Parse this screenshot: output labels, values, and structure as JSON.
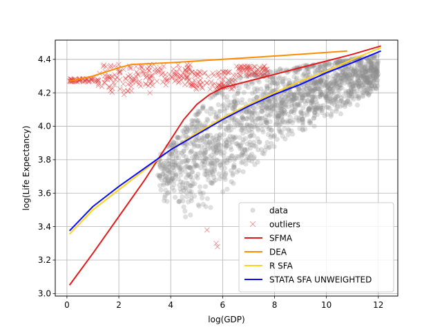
{
  "chart_data": {
    "type": "scatter",
    "title": "",
    "xlabel": "log(GDP)",
    "ylabel": "log(Life Expectancy)",
    "xlim": [
      -0.45,
      12.75
    ],
    "ylim": [
      2.985,
      4.515
    ],
    "xticks": [
      0,
      2,
      4,
      6,
      8,
      10,
      12
    ],
    "yticks": [
      3.0,
      3.2,
      3.4,
      3.6,
      3.8,
      4.0,
      4.2,
      4.4
    ],
    "xtick_labels": [
      "0",
      "2",
      "4",
      "6",
      "8",
      "10",
      "12"
    ],
    "ytick_labels": [
      "3.0",
      "3.2",
      "3.4",
      "3.6",
      "3.8",
      "4.0",
      "4.2",
      "4.4"
    ],
    "grid": true,
    "legend_position": "lower-right",
    "legend": [
      {
        "label": "data",
        "kind": "dot",
        "color": "#a0a0a0"
      },
      {
        "label": "outliers",
        "kind": "cross",
        "color": "#e88a8a"
      },
      {
        "label": "SFMA",
        "kind": "line",
        "color": "#e31a1c"
      },
      {
        "label": "DEA",
        "kind": "line",
        "color": "#ff8c00"
      },
      {
        "label": "R SFA",
        "kind": "line",
        "color": "#ffd21f"
      },
      {
        "label": "STATA SFA UNWEIGHTED",
        "kind": "line",
        "color": "#0a0aff"
      }
    ],
    "data_band": {
      "x_range": [
        3.5,
        12.0
      ],
      "upper": [
        [
          3.5,
          3.82
        ],
        [
          4.5,
          3.98
        ],
        [
          5.5,
          4.18
        ],
        [
          6.5,
          4.3
        ],
        [
          8,
          4.34
        ],
        [
          10,
          4.38
        ],
        [
          12,
          4.43
        ]
      ],
      "lower": [
        [
          3.5,
          3.58
        ],
        [
          4.5,
          3.4
        ],
        [
          5.5,
          3.5
        ],
        [
          6.5,
          3.65
        ],
        [
          8,
          3.85
        ],
        [
          10,
          4.0
        ],
        [
          12,
          4.2
        ]
      ],
      "density_center": [
        [
          3.5,
          3.7
        ],
        [
          5,
          3.82
        ],
        [
          7,
          4.05
        ],
        [
          9,
          4.2
        ],
        [
          12,
          4.33
        ]
      ]
    },
    "outlier_clusters": [
      {
        "x_range": [
          0.1,
          1.2
        ],
        "y_range": [
          4.265,
          4.285
        ]
      },
      {
        "x_range": [
          1.2,
          2.6
        ],
        "y_range": [
          4.2,
          4.37
        ]
      },
      {
        "x_range": [
          2.6,
          4.8
        ],
        "y_range": [
          4.24,
          4.37
        ]
      },
      {
        "x_range": [
          4.8,
          6.5
        ],
        "y_range": [
          4.22,
          4.33
        ]
      },
      {
        "x_range": [
          6.5,
          7.8
        ],
        "y_range": [
          4.3,
          4.36
        ]
      }
    ],
    "outlier_singles": [
      [
        5.8,
        3.28
      ],
      [
        5.75,
        3.3
      ],
      [
        5.4,
        3.38
      ],
      [
        3.2,
        4.2
      ],
      [
        2.2,
        4.19
      ]
    ],
    "series": [
      {
        "name": "SFMA",
        "color": "#e31a1c",
        "x": [
          0.1,
          1,
          2,
          3,
          3.5,
          4,
          4.5,
          5,
          5.5,
          6,
          7,
          8,
          9,
          10,
          11,
          12.1
        ],
        "y": [
          3.05,
          3.24,
          3.46,
          3.68,
          3.8,
          3.92,
          4.04,
          4.13,
          4.19,
          4.23,
          4.27,
          4.31,
          4.35,
          4.39,
          4.43,
          4.48
        ]
      },
      {
        "name": "DEA",
        "color": "#ff8c00",
        "x": [
          0.1,
          1,
          2,
          2.5,
          4,
          6,
          8,
          10.8
        ],
        "y": [
          4.27,
          4.3,
          4.35,
          4.37,
          4.38,
          4.4,
          4.42,
          4.45
        ]
      },
      {
        "name": "R SFA",
        "color": "#ffd21f",
        "x": [
          0.1,
          1,
          2,
          3,
          4,
          5,
          6,
          7,
          8,
          9,
          10,
          11,
          12.1
        ],
        "y": [
          3.355,
          3.5,
          3.62,
          3.74,
          3.86,
          3.96,
          4.05,
          4.13,
          4.2,
          4.27,
          4.33,
          4.4,
          4.47
        ]
      },
      {
        "name": "STATA SFA UNWEIGHTED",
        "color": "#0a0aff",
        "x": [
          0.1,
          1,
          2,
          3,
          4,
          5,
          6,
          7,
          8,
          9,
          10,
          11,
          12.1
        ],
        "y": [
          3.375,
          3.52,
          3.64,
          3.75,
          3.86,
          3.95,
          4.04,
          4.12,
          4.19,
          4.25,
          4.32,
          4.38,
          4.45
        ]
      }
    ]
  }
}
